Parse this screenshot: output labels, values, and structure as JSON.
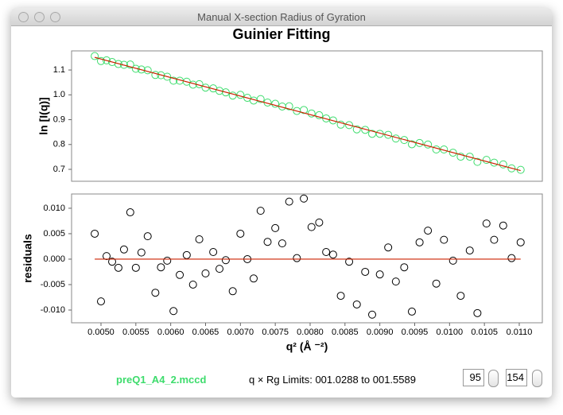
{
  "window": {
    "title": "Manual X-section Radius of Gyration"
  },
  "chart_data": [
    {
      "type": "scatter",
      "title": "Guinier Fitting",
      "ylabel": "ln [I(q)]",
      "x": [
        0.00491,
        0.005,
        0.00508,
        0.00516,
        0.00525,
        0.00533,
        0.00542,
        0.0055,
        0.00558,
        0.00567,
        0.00578,
        0.00586,
        0.00595,
        0.00604,
        0.00613,
        0.00623,
        0.00632,
        0.00641,
        0.0065,
        0.00661,
        0.0067,
        0.00679,
        0.00689,
        0.007,
        0.0071,
        0.00719,
        0.00729,
        0.00739,
        0.0075,
        0.0076,
        0.0077,
        0.00781,
        0.00791,
        0.00802,
        0.00813,
        0.00823,
        0.00833,
        0.00844,
        0.00856,
        0.00867,
        0.00879,
        0.00889,
        0.009,
        0.00912,
        0.00923,
        0.00935,
        0.00946,
        0.00957,
        0.00969,
        0.00981,
        0.00992,
        0.01005,
        0.01016,
        0.01029,
        0.0104,
        0.01053,
        0.01064,
        0.01077,
        0.01089,
        0.01102
      ],
      "series": [
        {
          "color": "#3ddc6c",
          "mode": "markers",
          "values": [
            1.156,
            1.136,
            1.139,
            1.132,
            1.124,
            1.121,
            1.122,
            1.105,
            1.102,
            1.099,
            1.08,
            1.079,
            1.073,
            1.057,
            1.057,
            1.053,
            1.041,
            1.043,
            1.029,
            1.026,
            1.016,
            1.01,
            0.997,
            1.0,
            0.988,
            0.977,
            0.983,
            0.969,
            0.964,
            0.953,
            0.954,
            0.935,
            0.939,
            0.925,
            0.918,
            0.905,
            0.897,
            0.88,
            0.878,
            0.861,
            0.859,
            0.843,
            0.843,
            0.839,
            0.824,
            0.818,
            0.801,
            0.806,
            0.8,
            0.78,
            0.78,
            0.767,
            0.751,
            0.751,
            0.73,
            0.738,
            0.727,
            0.72,
            0.704,
            0.698
          ]
        },
        {
          "color": "#cc2200",
          "mode": "line",
          "x": [
            0.00491,
            0.01102
          ],
          "values": [
            1.151,
            0.695
          ]
        }
      ],
      "xlim": [
        0.004578,
        0.011331
      ],
      "ylim": [
        0.652,
        1.177
      ],
      "yticks": [
        0.7,
        0.8,
        0.9,
        {
          "value": 1,
          "label": "1.0"
        },
        1.1
      ]
    },
    {
      "type": "scatter",
      "ylabel": "residuals",
      "xlabel": "q² (Å ⁻²)",
      "x": [
        0.00491,
        0.005,
        0.00508,
        0.00516,
        0.00525,
        0.00533,
        0.00542,
        0.0055,
        0.00558,
        0.00567,
        0.00578,
        0.00586,
        0.00595,
        0.00604,
        0.00613,
        0.00623,
        0.00632,
        0.00641,
        0.0065,
        0.00661,
        0.0067,
        0.00679,
        0.00689,
        0.007,
        0.0071,
        0.00719,
        0.00729,
        0.00739,
        0.0075,
        0.0076,
        0.0077,
        0.00781,
        0.00791,
        0.00802,
        0.00813,
        0.00823,
        0.00833,
        0.00844,
        0.00856,
        0.00867,
        0.00879,
        0.00889,
        0.009,
        0.00912,
        0.00923,
        0.00935,
        0.00946,
        0.00957,
        0.00969,
        0.00981,
        0.00992,
        0.01005,
        0.01016,
        0.01029,
        0.0104,
        0.01053,
        0.01064,
        0.01077,
        0.01089,
        0.01102
      ],
      "series": [
        {
          "color": "#000000",
          "mode": "markers",
          "values": [
            0.005,
            -0.0083,
            0.0006,
            -0.0005,
            -0.0017,
            0.0019,
            0.0092,
            -0.0017,
            0.0013,
            0.0045,
            -0.0066,
            -0.0016,
            -0.0003,
            -0.0102,
            -0.0031,
            0.0008,
            -0.005,
            0.0039,
            -0.0028,
            0.0014,
            -0.0019,
            -0.0002,
            -0.0063,
            0.005,
            0.0,
            -0.0038,
            0.0095,
            0.0034,
            0.0061,
            0.0031,
            0.0113,
            0.0002,
            0.0119,
            0.0063,
            0.0072,
            0.0014,
            0.0009,
            -0.0072,
            -0.0005,
            -0.0089,
            -0.0025,
            -0.0109,
            -0.003,
            0.0023,
            -0.0044,
            -0.0016,
            -0.0103,
            0.0033,
            0.0056,
            -0.0048,
            0.0038,
            -0.0003,
            -0.0072,
            0.0017,
            -0.0106,
            0.007,
            0.0038,
            0.0066,
            0.0002,
            0.0033
          ]
        },
        {
          "color": "#cc2200",
          "mode": "line",
          "x": [
            0.00491,
            0.01102
          ],
          "values": [
            0,
            0
          ]
        }
      ],
      "xlim": [
        0.004578,
        0.011331
      ],
      "ylim": [
        -0.0125,
        0.0128
      ],
      "xticks": [
        {
          "value": 0.005,
          "label": "0.0050"
        },
        {
          "value": 0.0055,
          "label": "0.0055"
        },
        {
          "value": 0.006,
          "label": "0.0060"
        },
        {
          "value": 0.0065,
          "label": "0.0065"
        },
        {
          "value": 0.007,
          "label": "0.0070"
        },
        {
          "value": 0.0075,
          "label": "0.0075"
        },
        {
          "value": 0.008,
          "label": "0.0080"
        },
        {
          "value": 0.0085,
          "label": "0.0085"
        },
        {
          "value": 0.009,
          "label": "0.0090"
        },
        {
          "value": 0.0095,
          "label": "0.0095"
        },
        {
          "value": 0.01,
          "label": "0.0100"
        },
        {
          "value": 0.0105,
          "label": "0.0105"
        },
        {
          "value": 0.011,
          "label": "0.0110"
        }
      ],
      "yticks": [
        {
          "value": -0.01,
          "label": "-0.010"
        },
        {
          "value": -0.005,
          "label": "-0.005"
        },
        {
          "value": 0,
          "label": "0.000"
        },
        {
          "value": 0.005,
          "label": "0.005"
        },
        {
          "value": 0.01,
          "label": "0.010"
        }
      ]
    }
  ],
  "footer": {
    "file": "preQ1_A4_2.mccd",
    "limits": "q × Rg Limits: 001.0288 to 001.5589",
    "start": 95,
    "end": 154
  }
}
